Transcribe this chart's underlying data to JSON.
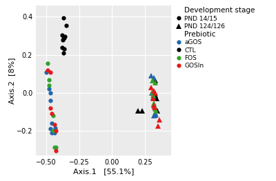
{
  "xlabel": "Axis.1   [55.1%]",
  "ylabel": "Axis.2  [8%]",
  "xlim": [
    -0.58,
    0.45
  ],
  "ylim": [
    -0.33,
    0.46
  ],
  "xticks": [
    -0.5,
    -0.25,
    0.0,
    0.25
  ],
  "yticks": [
    -0.2,
    0.0,
    0.2,
    0.4
  ],
  "plot_background": "#ebebeb",
  "fig_background": "#ffffff",
  "grid_color": "#ffffff",
  "points": {
    "circle_black": [
      [
        -0.37,
        0.395
      ],
      [
        -0.35,
        0.355
      ],
      [
        -0.38,
        0.305
      ],
      [
        -0.36,
        0.295
      ],
      [
        -0.365,
        0.29
      ],
      [
        -0.37,
        0.285
      ],
      [
        -0.375,
        0.28
      ],
      [
        -0.38,
        0.24
      ],
      [
        -0.365,
        0.23
      ],
      [
        -0.37,
        0.21
      ]
    ],
    "circle_blue": [
      [
        -0.5,
        0.11
      ],
      [
        -0.48,
        0.02
      ],
      [
        -0.47,
        0.0
      ],
      [
        -0.47,
        -0.04
      ],
      [
        -0.46,
        -0.16
      ],
      [
        -0.47,
        -0.19
      ],
      [
        -0.46,
        -0.21
      ],
      [
        -0.44,
        -0.21
      ],
      [
        -0.435,
        -0.185
      ]
    ],
    "circle_green": [
      [
        -0.49,
        0.155
      ],
      [
        -0.48,
        0.07
      ],
      [
        -0.48,
        0.04
      ],
      [
        -0.45,
        -0.12
      ],
      [
        -0.45,
        -0.2
      ],
      [
        -0.44,
        -0.285
      ],
      [
        -0.43,
        -0.285
      ]
    ],
    "circle_red": [
      [
        -0.49,
        0.12
      ],
      [
        -0.47,
        0.11
      ],
      [
        -0.47,
        -0.08
      ],
      [
        -0.46,
        -0.11
      ],
      [
        -0.44,
        -0.165
      ],
      [
        -0.43,
        -0.2
      ],
      [
        -0.43,
        -0.305
      ]
    ],
    "triangle_black": [
      [
        0.2,
        -0.095
      ],
      [
        0.23,
        -0.095
      ],
      [
        0.32,
        0.075
      ],
      [
        0.33,
        0.065
      ],
      [
        0.33,
        -0.01
      ],
      [
        0.34,
        -0.03
      ],
      [
        0.34,
        -0.095
      ],
      [
        0.345,
        -0.095
      ]
    ],
    "triangle_blue": [
      [
        0.3,
        0.09
      ],
      [
        0.32,
        0.08
      ],
      [
        0.305,
        0.0
      ],
      [
        0.315,
        -0.02
      ],
      [
        0.32,
        -0.06
      ],
      [
        0.32,
        -0.12
      ],
      [
        0.33,
        -0.105
      ],
      [
        0.335,
        -0.115
      ]
    ],
    "triangle_green": [
      [
        0.31,
        0.065
      ],
      [
        0.33,
        0.055
      ],
      [
        0.31,
        0.005
      ],
      [
        0.315,
        -0.01
      ],
      [
        0.32,
        -0.055
      ],
      [
        0.325,
        -0.07
      ],
      [
        0.33,
        -0.085
      ],
      [
        0.335,
        -0.095
      ]
    ],
    "triangle_red": [
      [
        0.3,
        0.03
      ],
      [
        0.32,
        0.01
      ],
      [
        0.33,
        0.0
      ],
      [
        0.315,
        -0.03
      ],
      [
        0.32,
        -0.065
      ],
      [
        0.325,
        -0.075
      ],
      [
        0.35,
        -0.175
      ],
      [
        0.36,
        -0.14
      ]
    ]
  },
  "colors": {
    "blue": "#2166ac",
    "black": "#000000",
    "green": "#33a02c",
    "red": "#e31a1c"
  },
  "legend": {
    "title1": "Development stage",
    "l1": "PND 14/15",
    "l2": "PND 124/126",
    "title2": "Prebiotic",
    "l3": "aGOS",
    "l4": "CTL",
    "l5": "FOS",
    "l6": "GOSIn"
  }
}
